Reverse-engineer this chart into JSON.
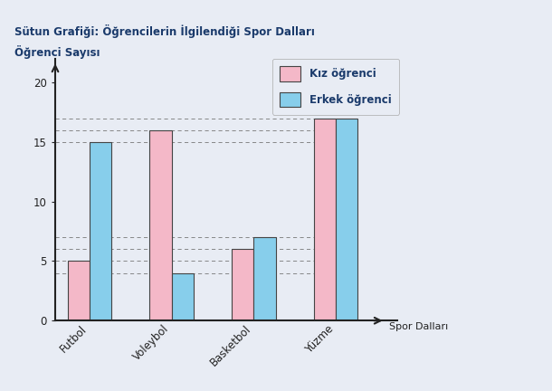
{
  "title_line1": "Sütun Grafiği: Öğrencilerin İlgilendiği Spor Dalları",
  "title_line2": "Öğrenci Sayısı",
  "categories": [
    "Futbol",
    "Voleybol",
    "Basketbol",
    "Yüzme"
  ],
  "kiz_values": [
    5,
    16,
    6,
    17
  ],
  "erkek_values": [
    15,
    4,
    7,
    17
  ],
  "kiz_color": "#F4B8C8",
  "erkek_color": "#87CEEB",
  "bar_edge_color": "#444444",
  "xlabel": "Spor Dalları",
  "ylim": [
    0,
    22
  ],
  "yticks": [
    0,
    5,
    10,
    15,
    20
  ],
  "dashed_lines": [
    4,
    5,
    6,
    7,
    15,
    16,
    17
  ],
  "legend_kiz": "Kız öğrenci",
  "legend_erkek": "Erkek öğrenci",
  "background_color": "#E8ECF4",
  "title_color": "#1A3A6B",
  "axis_color": "#222222",
  "tick_label_color": "#222222",
  "bar_width": 0.32,
  "group_positions": [
    0.5,
    1.7,
    2.9,
    4.1
  ],
  "xlim_left": 0.0,
  "xlim_right": 5.0
}
